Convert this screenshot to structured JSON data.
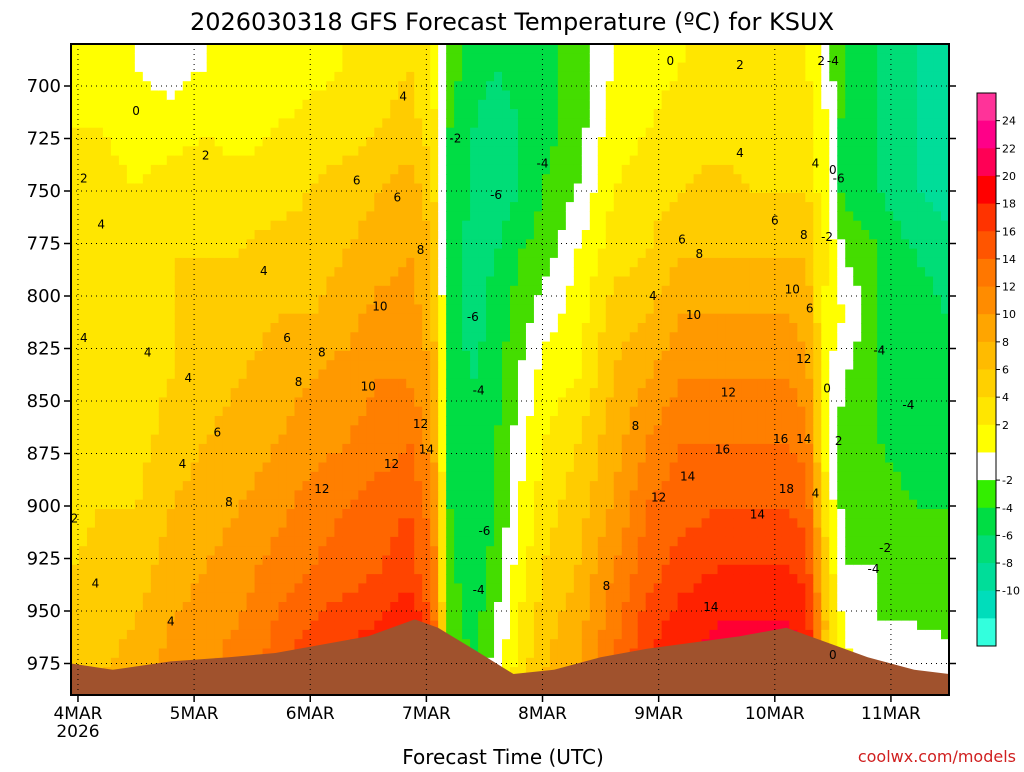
{
  "chart_data": {
    "type": "heatmap",
    "title": "2026030318 GFS Forecast Temperature (ºC) for KSUX",
    "xlabel": "Forecast Time (UTC)",
    "ylabel": "",
    "credit": "coolwx.com/models",
    "x_ticks": [
      {
        "label": "4MAR",
        "sub": "2026",
        "day": 4
      },
      {
        "label": "5MAR",
        "sub": "",
        "day": 5
      },
      {
        "label": "6MAR",
        "sub": "",
        "day": 6
      },
      {
        "label": "7MAR",
        "sub": "",
        "day": 7
      },
      {
        "label": "8MAR",
        "sub": "",
        "day": 8
      },
      {
        "label": "9MAR",
        "sub": "",
        "day": 9
      },
      {
        "label": "10MAR",
        "sub": "",
        "day": 10
      },
      {
        "label": "11MAR",
        "sub": "",
        "day": 11
      }
    ],
    "xlim": [
      3.94,
      11.5
    ],
    "y_ticks": [
      700,
      725,
      750,
      775,
      800,
      825,
      850,
      875,
      900,
      925,
      950,
      975
    ],
    "ylim": [
      680,
      990
    ],
    "y_unit": "hPa",
    "grid": true,
    "colorbar": {
      "labels": [
        24,
        22,
        20,
        18,
        16,
        14,
        12,
        10,
        8,
        6,
        4,
        2,
        -2,
        -4,
        -6,
        -8,
        -10
      ],
      "colors": [
        "#ff3399",
        "#ff0088",
        "#ff0055",
        "#ff0000",
        "#ff3300",
        "#ff5500",
        "#ff7700",
        "#ff8c00",
        "#ffa500",
        "#ffbb00",
        "#ffd000",
        "#ffe600",
        "#ffff00",
        "#ffffff",
        "#33ee00",
        "#00dd44",
        "#00dd77",
        "#00dd99",
        "#00ddbb",
        "#33ffdd"
      ]
    },
    "temperature_profiles": [
      {
        "day": 3.94,
        "temps": [
          1,
          2,
          3,
          4,
          4,
          4,
          3,
          3,
          4,
          5,
          6
        ]
      },
      {
        "day": 4.2,
        "temps": [
          1,
          2,
          3,
          3,
          4,
          3,
          4,
          4,
          5,
          5,
          6
        ]
      },
      {
        "day": 4.5,
        "temps": [
          0,
          1,
          2,
          3,
          3,
          3,
          3,
          4,
          5,
          6,
          7
        ]
      },
      {
        "day": 4.8,
        "temps": [
          -1,
          1,
          3,
          4,
          4,
          4,
          5,
          6,
          7,
          8,
          9
        ]
      },
      {
        "day": 5.1,
        "temps": [
          0,
          2,
          3,
          4,
          4,
          5,
          6,
          7,
          8,
          9,
          10
        ]
      },
      {
        "day": 5.4,
        "temps": [
          0,
          1,
          3,
          4,
          5,
          6,
          7,
          8,
          9,
          10,
          11
        ]
      },
      {
        "day": 5.7,
        "temps": [
          0,
          2,
          3,
          5,
          6,
          7,
          8,
          9,
          11,
          12,
          13
        ]
      },
      {
        "day": 6.0,
        "temps": [
          1,
          3,
          4,
          5,
          6,
          8,
          9,
          11,
          12,
          14,
          16
        ]
      },
      {
        "day": 6.3,
        "temps": [
          2,
          3,
          5,
          6,
          7,
          9,
          10,
          12,
          13,
          15,
          17
        ]
      },
      {
        "day": 6.6,
        "temps": [
          3,
          4,
          6,
          7,
          9,
          10,
          11,
          13,
          14,
          16,
          19
        ]
      },
      {
        "day": 6.85,
        "temps": [
          4,
          5,
          7,
          8,
          9,
          10,
          12,
          14,
          15,
          18,
          21
        ]
      },
      {
        "day": 7.05,
        "temps": [
          2,
          3,
          5,
          6,
          7,
          8,
          9,
          11,
          12,
          14,
          16
        ]
      },
      {
        "day": 7.2,
        "temps": [
          -3,
          -4,
          -5,
          -5,
          -5,
          -5,
          -4,
          -4,
          -3,
          -3,
          -2
        ]
      },
      {
        "day": 7.4,
        "temps": [
          -5,
          -6,
          -6,
          -7,
          -7,
          -6,
          -6,
          -6,
          -6,
          -5,
          -4
        ]
      },
      {
        "day": 7.6,
        "temps": [
          -6,
          -7,
          -7,
          -6,
          -5,
          -5,
          -4,
          -4,
          -3,
          -2,
          -1
        ]
      },
      {
        "day": 7.8,
        "temps": [
          -5,
          -6,
          -6,
          -4,
          -3,
          -2,
          -1,
          0,
          1,
          2,
          3
        ]
      },
      {
        "day": 8.0,
        "temps": [
          -5,
          -5,
          -4,
          -3,
          -1,
          1,
          2,
          3,
          4,
          5,
          6
        ]
      },
      {
        "day": 8.3,
        "temps": [
          -3,
          -3,
          -2,
          0,
          1,
          2,
          4,
          5,
          6,
          7,
          8
        ]
      },
      {
        "day": 8.6,
        "temps": [
          0,
          1,
          2,
          3,
          5,
          6,
          7,
          8,
          10,
          11,
          12
        ]
      },
      {
        "day": 8.9,
        "temps": [
          1,
          2,
          3,
          4,
          6,
          8,
          10,
          12,
          13,
          15,
          16
        ]
      },
      {
        "day": 9.2,
        "temps": [
          2,
          3,
          4,
          6,
          8,
          10,
          12,
          13,
          15,
          17,
          18
        ]
      },
      {
        "day": 9.5,
        "temps": [
          2,
          3,
          5,
          6,
          8,
          10,
          12,
          14,
          16,
          18,
          19
        ]
      },
      {
        "day": 9.8,
        "temps": [
          2,
          3,
          4,
          6,
          8,
          10,
          12,
          14,
          16,
          18,
          20
        ]
      },
      {
        "day": 10.1,
        "temps": [
          2,
          3,
          4,
          6,
          8,
          10,
          12,
          14,
          16,
          18,
          21
        ]
      },
      {
        "day": 10.28,
        "temps": [
          2,
          3,
          4,
          6,
          7,
          9,
          11,
          13,
          15,
          17,
          19
        ]
      },
      {
        "day": 10.45,
        "temps": [
          -1,
          0,
          0,
          2,
          1,
          0,
          0,
          2,
          4,
          5,
          4
        ]
      },
      {
        "day": 10.6,
        "temps": [
          -4,
          -5,
          -5,
          -2,
          0,
          -2,
          -3,
          -3,
          -2,
          -1,
          1
        ]
      },
      {
        "day": 10.9,
        "temps": [
          -6,
          -6,
          -6,
          -4,
          -4,
          -4,
          -4,
          -3,
          -2,
          -2,
          0
        ]
      },
      {
        "day": 11.2,
        "temps": [
          -8,
          -8,
          -8,
          -6,
          -5,
          -5,
          -5,
          -4,
          -3,
          -2,
          0
        ]
      },
      {
        "day": 11.5,
        "temps": [
          -10,
          -10,
          -9,
          -7,
          -6,
          -6,
          -5,
          -4,
          -4,
          -3,
          0
        ]
      }
    ],
    "profile_levels": [
      690,
      720,
      750,
      780,
      810,
      840,
      870,
      900,
      930,
      955,
      980
    ],
    "terrain_surface_pressure": [
      {
        "day": 3.94,
        "p": 975
      },
      {
        "day": 4.3,
        "p": 978
      },
      {
        "day": 4.8,
        "p": 974
      },
      {
        "day": 5.3,
        "p": 972
      },
      {
        "day": 5.7,
        "p": 970
      },
      {
        "day": 6.1,
        "p": 966
      },
      {
        "day": 6.5,
        "p": 962
      },
      {
        "day": 6.9,
        "p": 954
      },
      {
        "day": 7.1,
        "p": 958
      },
      {
        "day": 7.4,
        "p": 968
      },
      {
        "day": 7.75,
        "p": 980
      },
      {
        "day": 8.1,
        "p": 978
      },
      {
        "day": 8.5,
        "p": 972
      },
      {
        "day": 8.9,
        "p": 968
      },
      {
        "day": 9.3,
        "p": 965
      },
      {
        "day": 9.7,
        "p": 962
      },
      {
        "day": 10.1,
        "p": 958
      },
      {
        "day": 10.4,
        "p": 964
      },
      {
        "day": 10.8,
        "p": 972
      },
      {
        "day": 11.2,
        "p": 978
      },
      {
        "day": 11.5,
        "p": 980
      }
    ],
    "contour_labels": [
      {
        "day": 4.5,
        "p": 712,
        "text": "0"
      },
      {
        "day": 4.05,
        "p": 744,
        "text": "2"
      },
      {
        "day": 4.2,
        "p": 766,
        "text": "4"
      },
      {
        "day": 4.05,
        "p": 820,
        "text": "4"
      },
      {
        "day": 4.6,
        "p": 827,
        "text": "4"
      },
      {
        "day": 4.95,
        "p": 839,
        "text": "4"
      },
      {
        "day": 4.8,
        "p": 955,
        "text": "4"
      },
      {
        "day": 4.15,
        "p": 937,
        "text": "4"
      },
      {
        "day": 3.97,
        "p": 906,
        "text": "2"
      },
      {
        "day": 5.1,
        "p": 733,
        "text": "2"
      },
      {
        "day": 5.6,
        "p": 788,
        "text": "4"
      },
      {
        "day": 5.8,
        "p": 820,
        "text": "6"
      },
      {
        "day": 5.2,
        "p": 865,
        "text": "6"
      },
      {
        "day": 4.9,
        "p": 880,
        "text": "4"
      },
      {
        "day": 5.3,
        "p": 898,
        "text": "8"
      },
      {
        "day": 5.9,
        "p": 841,
        "text": "8"
      },
      {
        "day": 6.1,
        "p": 827,
        "text": "8"
      },
      {
        "day": 6.4,
        "p": 745,
        "text": "6"
      },
      {
        "day": 6.75,
        "p": 753,
        "text": "6"
      },
      {
        "day": 6.8,
        "p": 705,
        "text": "4"
      },
      {
        "day": 6.6,
        "p": 805,
        "text": "10"
      },
      {
        "day": 6.5,
        "p": 843,
        "text": "10"
      },
      {
        "day": 6.95,
        "p": 778,
        "text": "8"
      },
      {
        "day": 6.95,
        "p": 861,
        "text": "12"
      },
      {
        "day": 6.7,
        "p": 880,
        "text": "12"
      },
      {
        "day": 6.1,
        "p": 892,
        "text": "12"
      },
      {
        "day": 7.0,
        "p": 873,
        "text": "14"
      },
      {
        "day": 7.25,
        "p": 725,
        "text": "-2"
      },
      {
        "day": 7.6,
        "p": 752,
        "text": "-6"
      },
      {
        "day": 8.0,
        "p": 737,
        "text": "-4"
      },
      {
        "day": 7.4,
        "p": 810,
        "text": "-6"
      },
      {
        "day": 7.45,
        "p": 845,
        "text": "-4"
      },
      {
        "day": 7.5,
        "p": 912,
        "text": "-6"
      },
      {
        "day": 7.45,
        "p": 940,
        "text": "-4"
      },
      {
        "day": 8.55,
        "p": 938,
        "text": "8"
      },
      {
        "day": 8.8,
        "p": 862,
        "text": "8"
      },
      {
        "day": 8.95,
        "p": 800,
        "text": "4"
      },
      {
        "day": 9.2,
        "p": 773,
        "text": "6"
      },
      {
        "day": 9.35,
        "p": 780,
        "text": "8"
      },
      {
        "day": 9.3,
        "p": 809,
        "text": "10"
      },
      {
        "day": 9.6,
        "p": 846,
        "text": "12"
      },
      {
        "day": 9.0,
        "p": 896,
        "text": "12"
      },
      {
        "day": 9.25,
        "p": 886,
        "text": "14"
      },
      {
        "day": 9.55,
        "p": 873,
        "text": "16"
      },
      {
        "day": 9.45,
        "p": 948,
        "text": "14"
      },
      {
        "day": 9.85,
        "p": 904,
        "text": "14"
      },
      {
        "day": 10.1,
        "p": 892,
        "text": "18"
      },
      {
        "day": 10.05,
        "p": 868,
        "text": "16"
      },
      {
        "day": 10.25,
        "p": 868,
        "text": "14"
      },
      {
        "day": 10.15,
        "p": 797,
        "text": "10"
      },
      {
        "day": 10.3,
        "p": 806,
        "text": "6"
      },
      {
        "day": 10.25,
        "p": 830,
        "text": "12"
      },
      {
        "day": 10.25,
        "p": 771,
        "text": "8"
      },
      {
        "day": 10.0,
        "p": 764,
        "text": "6"
      },
      {
        "day": 9.7,
        "p": 732,
        "text": "4"
      },
      {
        "day": 9.7,
        "p": 690,
        "text": "2"
      },
      {
        "day": 9.1,
        "p": 688,
        "text": "0"
      },
      {
        "day": 10.35,
        "p": 737,
        "text": "4"
      },
      {
        "day": 10.5,
        "p": 740,
        "text": "0"
      },
      {
        "day": 10.4,
        "p": 688,
        "text": "2"
      },
      {
        "day": 10.5,
        "p": 688,
        "text": "-4"
      },
      {
        "day": 10.55,
        "p": 744,
        "text": "-6"
      },
      {
        "day": 10.45,
        "p": 772,
        "text": "-2"
      },
      {
        "day": 10.45,
        "p": 844,
        "text": "0"
      },
      {
        "day": 10.35,
        "p": 894,
        "text": "4"
      },
      {
        "day": 10.55,
        "p": 869,
        "text": "2"
      },
      {
        "day": 10.95,
        "p": 920,
        "text": "-2"
      },
      {
        "day": 10.85,
        "p": 930,
        "text": "-4"
      },
      {
        "day": 10.9,
        "p": 826,
        "text": "-4"
      },
      {
        "day": 11.15,
        "p": 852,
        "text": "-4"
      },
      {
        "day": 10.5,
        "p": 971,
        "text": "0"
      }
    ]
  }
}
